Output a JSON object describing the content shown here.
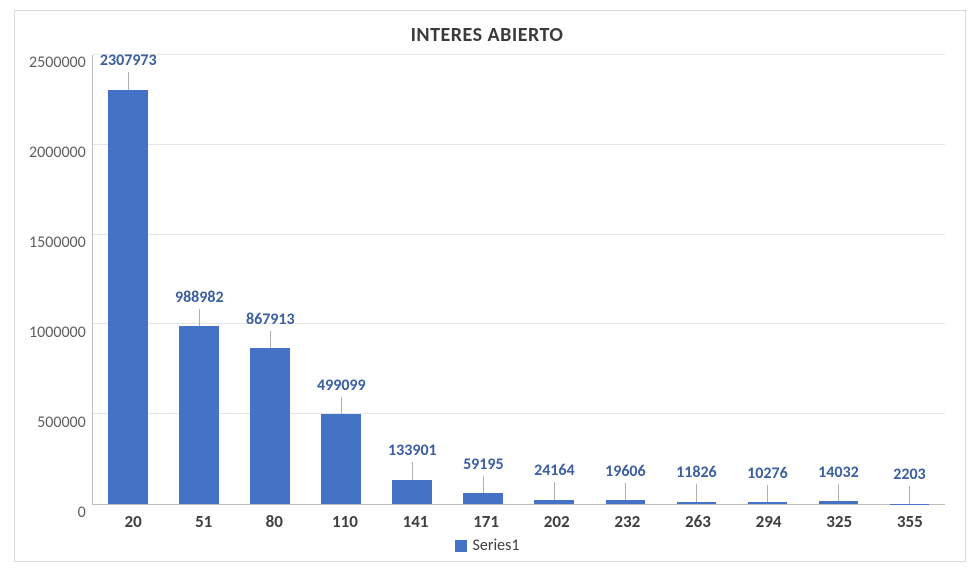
{
  "chart": {
    "type": "bar",
    "title": "INTERES ABIERTO",
    "title_fontsize": 20,
    "background_color": "#ffffff",
    "border_color": "#d9d9d9",
    "grid_color": "#e6e6e6",
    "axis_line_color": "#bfbfbf",
    "bar_color": "#4472c4",
    "bar_width_ratio": 0.56,
    "label_color": "#3b5fa0",
    "axis_label_color": "#5f5f5f",
    "x_label_color": "#404040",
    "ylim": [
      0,
      2500000
    ],
    "ytick_step": 500000,
    "y_ticks": [
      0,
      500000,
      1000000,
      1500000,
      2000000,
      2500000
    ],
    "categories": [
      "20",
      "51",
      "80",
      "110",
      "141",
      "171",
      "202",
      "232",
      "263",
      "294",
      "325",
      "355"
    ],
    "values": [
      2307973,
      988982,
      867913,
      499099,
      133901,
      59195,
      24164,
      19606,
      11826,
      10276,
      14032,
      2203
    ],
    "legend": {
      "label": "Series1",
      "swatch_color": "#4472c4"
    },
    "tick_fontsize": 16,
    "xlabel_fontsize": 17
  }
}
